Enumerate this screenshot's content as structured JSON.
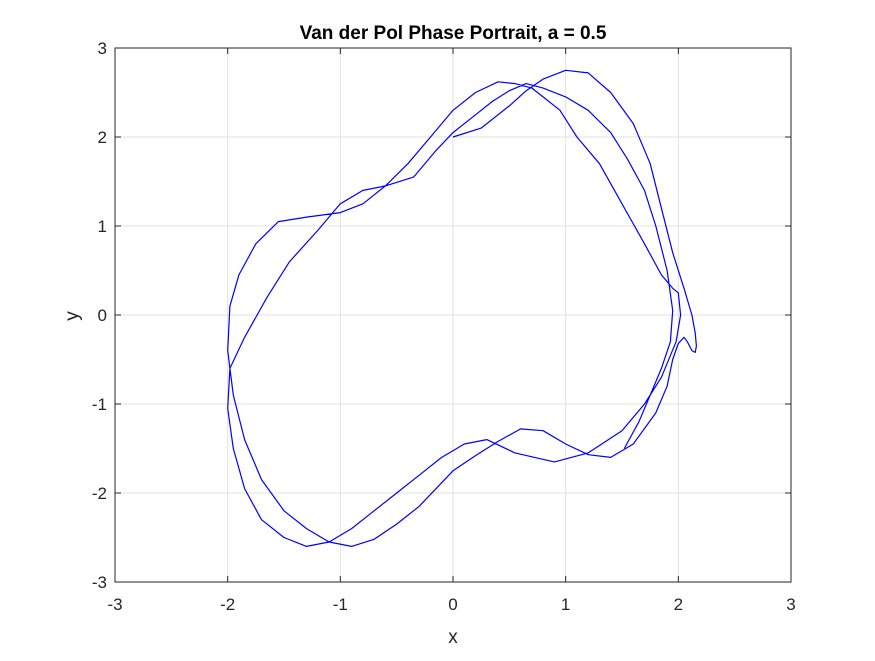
{
  "chart_data": {
    "type": "line",
    "title": "Van der Pol Phase Portrait, a = 0.5",
    "xlabel": "x",
    "ylabel": "y",
    "xlim": [
      -3,
      3
    ],
    "ylim": [
      -3,
      3
    ],
    "xticks": [
      "-3",
      "-2",
      "-1",
      "0",
      "1",
      "2",
      "3"
    ],
    "yticks": [
      "-3",
      "-2",
      "-1",
      "0",
      "1",
      "2",
      "3"
    ],
    "grid": true,
    "box": true,
    "line_color": "#0000ff",
    "series": [
      {
        "x": [
          0.0,
          0.25,
          0.5,
          0.65,
          0.8,
          1.0,
          1.2,
          1.4,
          1.6,
          1.75,
          1.85,
          1.95,
          2.05,
          2.12,
          2.15,
          2.16,
          2.15,
          2.12,
          2.08,
          2.05,
          2.0,
          1.95,
          1.9,
          1.8,
          1.6,
          1.4,
          1.2,
          1.0,
          0.8,
          0.6,
          0.4,
          0.2,
          0.0,
          -0.15,
          -0.3,
          -0.5,
          -0.7,
          -0.9,
          -1.1,
          -1.3,
          -1.5,
          -1.7,
          -1.85,
          -1.95,
          -2.0,
          -1.98,
          -1.9,
          -1.75,
          -1.55,
          -1.3,
          -1.0,
          -0.8,
          -0.6,
          -0.4,
          -0.2,
          0.0,
          0.2,
          0.4,
          0.55,
          0.7,
          0.8,
          0.95,
          1.1,
          1.3,
          1.5,
          1.7,
          1.85,
          1.95,
          2.0,
          2.02,
          1.98,
          1.85,
          1.7,
          1.5,
          1.2,
          0.9,
          0.55,
          0.3,
          0.1,
          -0.1,
          -0.3,
          -0.5,
          -0.7,
          -0.9,
          -1.1,
          -1.3,
          -1.5,
          -1.7,
          -1.85,
          -1.95,
          -2.0,
          -1.98,
          -1.85,
          -1.65,
          -1.45,
          -1.2,
          -1.0,
          -0.8,
          -0.6,
          -0.35,
          -0.15,
          0.0,
          0.2,
          0.35,
          0.5,
          0.65,
          0.8,
          1.0,
          1.2,
          1.4,
          1.55,
          1.7,
          1.8,
          1.9,
          1.95,
          1.93,
          1.85,
          1.75,
          1.65,
          1.52
        ],
        "y": [
          2.0,
          2.1,
          2.35,
          2.52,
          2.65,
          2.75,
          2.72,
          2.5,
          2.15,
          1.7,
          1.2,
          0.7,
          0.3,
          0.0,
          -0.2,
          -0.35,
          -0.42,
          -0.4,
          -0.3,
          -0.25,
          -0.32,
          -0.5,
          -0.8,
          -1.1,
          -1.45,
          -1.6,
          -1.57,
          -1.45,
          -1.3,
          -1.28,
          -1.42,
          -1.58,
          -1.75,
          -1.95,
          -2.15,
          -2.35,
          -2.52,
          -2.6,
          -2.55,
          -2.4,
          -2.2,
          -1.85,
          -1.4,
          -0.9,
          -0.4,
          0.1,
          0.45,
          0.8,
          1.05,
          1.1,
          1.15,
          1.25,
          1.45,
          1.7,
          2.0,
          2.3,
          2.5,
          2.62,
          2.6,
          2.55,
          2.45,
          2.3,
          2.0,
          1.7,
          1.25,
          0.8,
          0.45,
          0.3,
          0.25,
          0.0,
          -0.3,
          -0.7,
          -1.0,
          -1.3,
          -1.55,
          -1.65,
          -1.55,
          -1.4,
          -1.45,
          -1.6,
          -1.8,
          -2.0,
          -2.2,
          -2.4,
          -2.55,
          -2.6,
          -2.5,
          -2.3,
          -1.95,
          -1.5,
          -1.05,
          -0.6,
          -0.25,
          0.2,
          0.6,
          0.95,
          1.25,
          1.4,
          1.45,
          1.55,
          1.85,
          2.05,
          2.25,
          2.4,
          2.52,
          2.6,
          2.55,
          2.45,
          2.3,
          2.05,
          1.75,
          1.4,
          1.0,
          0.5,
          0.05,
          -0.3,
          -0.6,
          -0.9,
          -1.2,
          -1.5
        ]
      }
    ]
  }
}
